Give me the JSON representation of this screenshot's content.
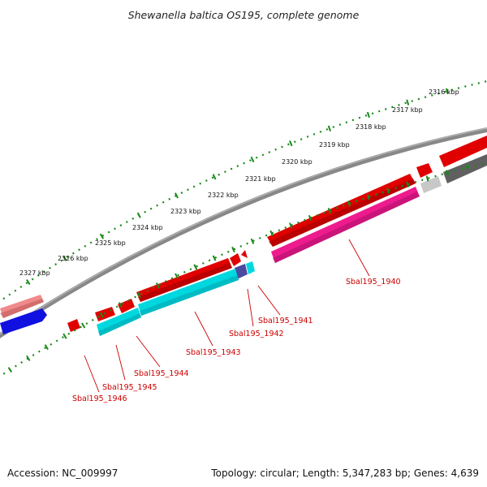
{
  "title": "Shewanella baltica OS195, complete genome",
  "scale_labels": [
    "2316 kbp",
    "2317 kbp",
    "2318 kbp",
    "2319 kbp",
    "2320 kbp",
    "2321 kbp",
    "2322 kbp",
    "2323 kbp",
    "2324 kbp",
    "2325 kbp",
    "2326 kbp",
    "2327 kbp"
  ],
  "gene_labels": [
    "Sbal195_1940",
    "Sbal195_1941",
    "Sbal195_1942",
    "Sbal195_1943",
    "Sbal195_1944",
    "Sbal195_1945",
    "Sbal195_1946"
  ],
  "colors": {
    "backbone": "#8a8a8a",
    "gene_red": "#e00000",
    "gene_cyan": "#00d8e0",
    "gene_magenta": "#ee1b8e",
    "gene_navy": "#4a4aa0",
    "gene_blue": "#1010e0",
    "gene_pink": "#f08a8a",
    "gene_grey": "#606060",
    "gene_lightgrey": "#c8c8c8",
    "tick_green": "#1a8a1a",
    "label_red": "#cc0000"
  },
  "footer": {
    "accession": "Accession: NC_009997",
    "topology": "Topology: circular; Length: 5,347,283 bp; Genes: 4,639"
  }
}
